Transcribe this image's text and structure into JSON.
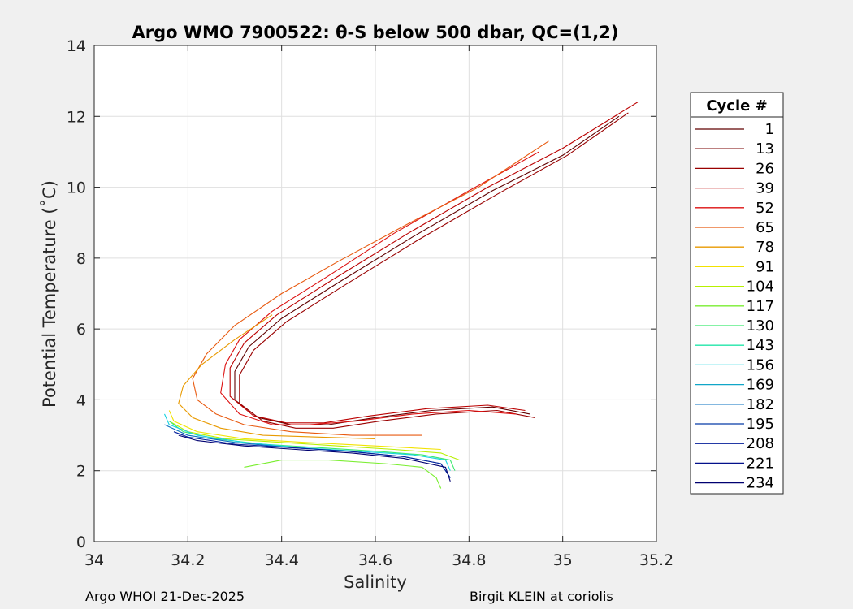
{
  "chart_data": {
    "type": "line",
    "title": "Argo WMO 7900522: θ-S below 500 dbar,  QC=(1,2)",
    "xlabel": "Salinity",
    "ylabel": "Potential Temperature (˚C)",
    "xlim": [
      34,
      35.2
    ],
    "ylim": [
      0,
      14
    ],
    "xticks": [
      "34",
      "34.2",
      "34.4",
      "34.6",
      "34.8",
      "35",
      "35.2"
    ],
    "yticks": [
      "0",
      "2",
      "4",
      "6",
      "8",
      "10",
      "12",
      "14"
    ],
    "grid": true,
    "legend": {
      "title": "Cycle #",
      "placement": "outside-right",
      "entries": [
        "1",
        "13",
        "26",
        "39",
        "52",
        "65",
        "78",
        "91",
        "104",
        "117",
        "130",
        "143",
        "156",
        "169",
        "182",
        "195",
        "208",
        "221",
        "234"
      ],
      "colors": [
        "#600000",
        "#7a0000",
        "#990000",
        "#bb0000",
        "#dd1111",
        "#e85a10",
        "#e89a00",
        "#f2e200",
        "#b8f000",
        "#7aee30",
        "#3cea70",
        "#20e6a8",
        "#19d2e0",
        "#10a6c8",
        "#0a70c0",
        "#063aa8",
        "#041e9a",
        "#02108a",
        "#000070"
      ]
    },
    "series": [
      {
        "color": "#600000",
        "x": [
          34.93,
          34.85,
          34.72,
          34.6,
          34.5,
          34.42,
          34.35,
          34.3,
          34.3,
          34.33,
          34.4,
          34.52,
          34.68,
          34.85,
          35.0,
          35.12
        ],
        "y": [
          3.6,
          3.8,
          3.7,
          3.5,
          3.3,
          3.3,
          3.5,
          4.0,
          4.8,
          5.5,
          6.3,
          7.3,
          8.6,
          9.9,
          10.9,
          12.0
        ]
      },
      {
        "color": "#990000",
        "x": [
          34.94,
          34.86,
          34.73,
          34.61,
          34.51,
          34.43,
          34.36,
          34.31,
          34.31,
          34.34,
          34.41,
          34.53,
          34.69,
          34.86,
          35.01,
          35.14
        ],
        "y": [
          3.5,
          3.7,
          3.6,
          3.4,
          3.2,
          3.2,
          3.4,
          3.9,
          4.7,
          5.4,
          6.2,
          7.2,
          8.5,
          9.8,
          10.9,
          12.1
        ]
      },
      {
        "color": "#bb0000",
        "x": [
          34.92,
          34.84,
          34.71,
          34.59,
          34.49,
          34.41,
          34.34,
          34.29,
          34.29,
          34.32,
          34.39,
          34.51,
          34.67,
          34.84,
          35.0,
          35.16
        ],
        "y": [
          3.7,
          3.85,
          3.75,
          3.55,
          3.35,
          3.35,
          3.55,
          4.1,
          4.9,
          5.6,
          6.4,
          7.4,
          8.7,
          10.0,
          11.1,
          12.4
        ]
      },
      {
        "color": "#dd1111",
        "x": [
          34.9,
          34.8,
          34.68,
          34.56,
          34.46,
          34.38,
          34.31,
          34.27,
          34.28,
          34.31,
          34.38,
          34.5,
          34.64,
          34.8,
          34.95
        ],
        "y": [
          3.6,
          3.7,
          3.6,
          3.4,
          3.3,
          3.3,
          3.6,
          4.2,
          5.0,
          5.7,
          6.5,
          7.5,
          8.7,
          9.9,
          11.0
        ]
      },
      {
        "color": "#e85a10",
        "x": [
          34.7,
          34.55,
          34.42,
          34.32,
          34.26,
          34.22,
          34.21,
          34.24,
          34.3,
          34.4,
          34.52,
          34.66,
          34.82,
          34.97
        ],
        "y": [
          3.0,
          3.0,
          3.1,
          3.3,
          3.6,
          4.0,
          4.6,
          5.3,
          6.1,
          7.0,
          7.9,
          8.9,
          10.0,
          11.3
        ]
      },
      {
        "color": "#e89a00",
        "x": [
          34.6,
          34.48,
          34.36,
          34.27,
          34.21,
          34.18,
          34.19,
          34.23,
          34.3,
          34.38
        ],
        "y": [
          2.9,
          2.95,
          3.0,
          3.2,
          3.5,
          3.9,
          4.4,
          5.0,
          5.7,
          6.4
        ]
      },
      {
        "color": "#f2e200",
        "x": [
          34.74,
          34.6,
          34.45,
          34.32,
          34.22,
          34.17,
          34.16
        ],
        "y": [
          2.6,
          2.7,
          2.8,
          2.9,
          3.1,
          3.4,
          3.7
        ]
      },
      {
        "color": "#b8f000",
        "x": [
          34.78,
          34.74,
          34.64,
          34.52,
          34.4,
          34.28,
          34.2,
          34.16
        ],
        "y": [
          2.3,
          2.5,
          2.6,
          2.7,
          2.8,
          2.9,
          3.1,
          3.4
        ]
      },
      {
        "color": "#7aee30",
        "x": [
          34.74,
          34.73,
          34.7,
          34.62,
          34.5,
          34.4,
          34.32
        ],
        "y": [
          1.5,
          1.8,
          2.1,
          2.2,
          2.3,
          2.3,
          2.1
        ]
      },
      {
        "color": "#3cea70",
        "x": [
          34.77,
          34.76,
          34.7,
          34.6,
          34.48,
          34.36,
          34.26,
          34.19,
          34.16
        ],
        "y": [
          2.0,
          2.3,
          2.45,
          2.55,
          2.65,
          2.75,
          2.9,
          3.1,
          3.4
        ]
      },
      {
        "color": "#19d2e0",
        "x": [
          34.76,
          34.75,
          34.68,
          34.56,
          34.44,
          34.32,
          34.22,
          34.16,
          34.15
        ],
        "y": [
          2.0,
          2.3,
          2.45,
          2.55,
          2.65,
          2.8,
          3.0,
          3.3,
          3.6
        ]
      },
      {
        "color": "#0a70c0",
        "x": [
          34.76,
          34.74,
          34.66,
          34.54,
          34.42,
          34.3,
          34.2,
          34.15
        ],
        "y": [
          1.8,
          2.2,
          2.4,
          2.55,
          2.65,
          2.8,
          3.0,
          3.3
        ]
      },
      {
        "color": "#041e9a",
        "x": [
          34.76,
          34.74,
          34.66,
          34.54,
          34.42,
          34.3,
          34.2,
          34.17
        ],
        "y": [
          1.8,
          2.2,
          2.4,
          2.55,
          2.65,
          2.75,
          2.95,
          3.1
        ]
      },
      {
        "color": "#000070",
        "x": [
          34.76,
          34.75,
          34.66,
          34.55,
          34.43,
          34.32,
          34.22,
          34.18
        ],
        "y": [
          1.7,
          2.1,
          2.35,
          2.5,
          2.6,
          2.7,
          2.85,
          3.0
        ]
      }
    ]
  },
  "footer": {
    "left": "Argo WHOI 21-Dec-2025",
    "right": "Birgit KLEIN at coriolis"
  }
}
